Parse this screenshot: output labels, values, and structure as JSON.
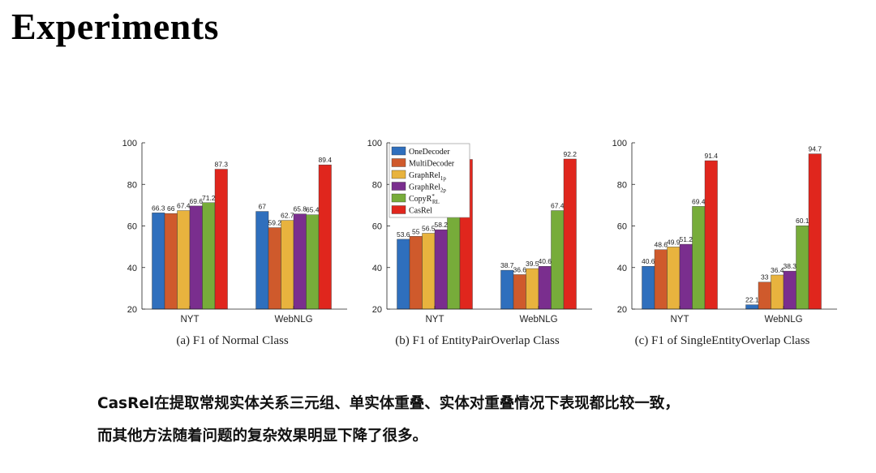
{
  "slide": {
    "title": "Experiments",
    "summary_line1": "CasRel在提取常规实体关系三元组、单实体重叠、实体对重叠情况下表现都比较一致，",
    "summary_line2": "而其他方法随着问题的复杂效果明显下降了很多。"
  },
  "colors": {
    "OneDecoder": "#2f6fbd",
    "MultiDecoder": "#cf5a2c",
    "GraphRel1p": "#e8b33e",
    "GraphRel2p": "#7a2e8e",
    "CopyRRL": "#77ac3a",
    "CasRel": "#e0261d"
  },
  "legend": [
    {
      "key": "OneDecoder",
      "label": "OneDecoder",
      "sub": "",
      "sup": ""
    },
    {
      "key": "MultiDecoder",
      "label": "MultiDecoder",
      "sub": "",
      "sup": ""
    },
    {
      "key": "GraphRel1p",
      "label": "GraphRel",
      "sub": "1p",
      "sup": ""
    },
    {
      "key": "GraphRel2p",
      "label": "GraphRel",
      "sub": "2p",
      "sup": ""
    },
    {
      "key": "CopyRRL",
      "label": "CopyR",
      "sub": "RL",
      "sup": "*"
    },
    {
      "key": "CasRel",
      "label": "CasRel",
      "sub": "",
      "sup": ""
    }
  ],
  "chart_data": [
    {
      "type": "bar",
      "caption": "(a)  F1 of Normal Class",
      "categories": [
        "NYT",
        "WebNLG"
      ],
      "ylim": [
        20,
        100
      ],
      "yticks": [
        20,
        40,
        60,
        80,
        100
      ],
      "series": [
        {
          "key": "OneDecoder",
          "values": [
            66.3,
            67
          ],
          "labels": [
            "66.3",
            "67"
          ]
        },
        {
          "key": "MultiDecoder",
          "values": [
            66,
            59.2
          ],
          "labels": [
            "66",
            "59.2"
          ]
        },
        {
          "key": "GraphRel1p",
          "values": [
            67.4,
            62.7
          ],
          "labels": [
            "67.4",
            "62.7"
          ]
        },
        {
          "key": "GraphRel2p",
          "values": [
            69.6,
            65.8
          ],
          "labels": [
            "69.6",
            "65.8"
          ]
        },
        {
          "key": "CopyRRL",
          "values": [
            71.2,
            65.4
          ],
          "labels": [
            "71.2",
            "65.4"
          ]
        },
        {
          "key": "CasRel",
          "values": [
            87.3,
            89.4
          ],
          "labels": [
            "87.3",
            "89.4"
          ]
        }
      ]
    },
    {
      "type": "bar",
      "caption": "(b)  F1 of EntityPairOverlap Class",
      "categories": [
        "NYT",
        "WebNLG"
      ],
      "ylim": [
        20,
        100
      ],
      "yticks": [
        20,
        40,
        60,
        80,
        100
      ],
      "legend": "top-left",
      "series": [
        {
          "key": "OneDecoder",
          "values": [
            53.6,
            38.7
          ],
          "labels": [
            "53.6",
            "38.7"
          ]
        },
        {
          "key": "MultiDecoder",
          "values": [
            55,
            36.6
          ],
          "labels": [
            "55",
            "36.6"
          ]
        },
        {
          "key": "GraphRel1p",
          "values": [
            56.5,
            39.5
          ],
          "labels": [
            "56.5",
            "39.5"
          ]
        },
        {
          "key": "GraphRel2p",
          "values": [
            58.2,
            40.6
          ],
          "labels": [
            "58.2",
            "40.6"
          ]
        },
        {
          "key": "CopyRRL",
          "values": [
            72.8,
            67.4
          ],
          "labels": [
            "72.8",
            "67.4"
          ]
        },
        {
          "key": "CasRel",
          "values": [
            92,
            92.2
          ],
          "labels": [
            "92",
            "92.2"
          ]
        }
      ]
    },
    {
      "type": "bar",
      "caption": "(c)  F1 of SingleEntityOverlap Class",
      "categories": [
        "NYT",
        "WebNLG"
      ],
      "ylim": [
        20,
        100
      ],
      "yticks": [
        20,
        40,
        60,
        80,
        100
      ],
      "series": [
        {
          "key": "OneDecoder",
          "values": [
            40.6,
            22.1
          ],
          "labels": [
            "40.6",
            "22.1"
          ]
        },
        {
          "key": "MultiDecoder",
          "values": [
            48.6,
            33
          ],
          "labels": [
            "48.6",
            "33"
          ]
        },
        {
          "key": "GraphRel1p",
          "values": [
            49.9,
            36.4
          ],
          "labels": [
            "49.9",
            "36.4"
          ]
        },
        {
          "key": "GraphRel2p",
          "values": [
            51.2,
            38.3
          ],
          "labels": [
            "51.2",
            "38.3"
          ]
        },
        {
          "key": "CopyRRL",
          "values": [
            69.4,
            60.1
          ],
          "labels": [
            "69.4",
            "60.1"
          ]
        },
        {
          "key": "CasRel",
          "values": [
            91.4,
            94.7
          ],
          "labels": [
            "91.4",
            "94.7"
          ]
        }
      ]
    }
  ]
}
